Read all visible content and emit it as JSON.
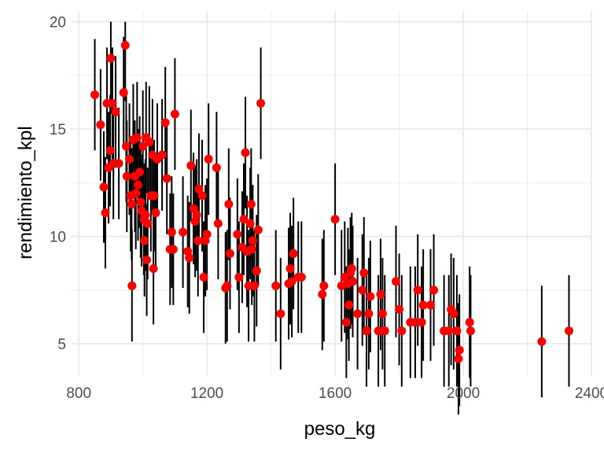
{
  "chart_data": {
    "type": "scatter",
    "xlabel": "peso_kg",
    "ylabel": "rendimiento_kpl",
    "xlim": [
      775,
      2400
    ],
    "ylim": [
      3.5,
      20.5
    ],
    "x_ticks": [
      800,
      1200,
      1600,
      2000,
      2400
    ],
    "x_tick_labels": [
      "800",
      "1200",
      "1600",
      "2000",
      "2400"
    ],
    "y_ticks": [
      5,
      10,
      15,
      20
    ],
    "y_tick_labels": [
      "5",
      "10",
      "15",
      "20"
    ],
    "grid": true,
    "point_color": "#ff0000",
    "errorbar_color": "#000000",
    "errorbar_halfwidth": 2.6,
    "points": [
      {
        "x": 850,
        "y": 16.6
      },
      {
        "x": 868,
        "y": 15.2
      },
      {
        "x": 878,
        "y": 12.3
      },
      {
        "x": 883,
        "y": 11.1
      },
      {
        "x": 888,
        "y": 16.2
      },
      {
        "x": 893,
        "y": 13.2
      },
      {
        "x": 898,
        "y": 14.0
      },
      {
        "x": 900,
        "y": 18.3
      },
      {
        "x": 905,
        "y": 16.2
      },
      {
        "x": 908,
        "y": 13.4
      },
      {
        "x": 915,
        "y": 15.8
      },
      {
        "x": 925,
        "y": 13.4
      },
      {
        "x": 940,
        "y": 16.7
      },
      {
        "x": 945,
        "y": 18.9
      },
      {
        "x": 948,
        "y": 14.2
      },
      {
        "x": 950,
        "y": 12.8
      },
      {
        "x": 958,
        "y": 13.6
      },
      {
        "x": 962,
        "y": 11.9
      },
      {
        "x": 965,
        "y": 11.5
      },
      {
        "x": 966,
        "y": 7.7
      },
      {
        "x": 970,
        "y": 14.5
      },
      {
        "x": 975,
        "y": 12.8
      },
      {
        "x": 978,
        "y": 12.0
      },
      {
        "x": 982,
        "y": 14.6
      },
      {
        "x": 985,
        "y": 12.4
      },
      {
        "x": 990,
        "y": 13.0
      },
      {
        "x": 993,
        "y": 11.6
      },
      {
        "x": 996,
        "y": 11.2
      },
      {
        "x": 1000,
        "y": 14.2
      },
      {
        "x": 1003,
        "y": 10.8
      },
      {
        "x": 1005,
        "y": 9.8
      },
      {
        "x": 1008,
        "y": 11.0
      },
      {
        "x": 1010,
        "y": 14.6
      },
      {
        "x": 1012,
        "y": 8.9
      },
      {
        "x": 1015,
        "y": 10.6
      },
      {
        "x": 1020,
        "y": 14.4
      },
      {
        "x": 1025,
        "y": 11.9
      },
      {
        "x": 1030,
        "y": 13.8
      },
      {
        "x": 1033,
        "y": 8.5
      },
      {
        "x": 1035,
        "y": 11.9
      },
      {
        "x": 1040,
        "y": 11.1
      },
      {
        "x": 1045,
        "y": 13.6
      },
      {
        "x": 1060,
        "y": 13.8
      },
      {
        "x": 1070,
        "y": 15.3
      },
      {
        "x": 1075,
        "y": 12.7
      },
      {
        "x": 1085,
        "y": 9.4
      },
      {
        "x": 1090,
        "y": 10.2
      },
      {
        "x": 1095,
        "y": 9.4
      },
      {
        "x": 1100,
        "y": 15.7
      },
      {
        "x": 1125,
        "y": 10.2
      },
      {
        "x": 1140,
        "y": 9.3
      },
      {
        "x": 1145,
        "y": 9.0
      },
      {
        "x": 1150,
        "y": 13.3
      },
      {
        "x": 1158,
        "y": 11.3
      },
      {
        "x": 1163,
        "y": 10.7
      },
      {
        "x": 1168,
        "y": 11.0
      },
      {
        "x": 1172,
        "y": 9.8
      },
      {
        "x": 1175,
        "y": 12.2
      },
      {
        "x": 1185,
        "y": 11.9
      },
      {
        "x": 1190,
        "y": 8.1
      },
      {
        "x": 1195,
        "y": 9.8
      },
      {
        "x": 1200,
        "y": 10.1
      },
      {
        "x": 1205,
        "y": 13.6
      },
      {
        "x": 1230,
        "y": 13.2
      },
      {
        "x": 1235,
        "y": 10.6
      },
      {
        "x": 1258,
        "y": 7.6
      },
      {
        "x": 1263,
        "y": 7.7
      },
      {
        "x": 1268,
        "y": 11.5
      },
      {
        "x": 1272,
        "y": 9.2
      },
      {
        "x": 1295,
        "y": 10.1
      },
      {
        "x": 1300,
        "y": 8.1
      },
      {
        "x": 1310,
        "y": 9.5
      },
      {
        "x": 1315,
        "y": 10.8
      },
      {
        "x": 1320,
        "y": 13.9
      },
      {
        "x": 1325,
        "y": 9.3
      },
      {
        "x": 1330,
        "y": 7.7
      },
      {
        "x": 1335,
        "y": 10.6
      },
      {
        "x": 1338,
        "y": 11.5
      },
      {
        "x": 1340,
        "y": 9.4
      },
      {
        "x": 1343,
        "y": 9.8
      },
      {
        "x": 1348,
        "y": 7.7
      },
      {
        "x": 1355,
        "y": 8.4
      },
      {
        "x": 1360,
        "y": 10.3
      },
      {
        "x": 1368,
        "y": 16.2
      },
      {
        "x": 1415,
        "y": 7.7
      },
      {
        "x": 1430,
        "y": 6.4
      },
      {
        "x": 1455,
        "y": 7.8
      },
      {
        "x": 1460,
        "y": 8.5
      },
      {
        "x": 1465,
        "y": 7.9
      },
      {
        "x": 1470,
        "y": 9.2
      },
      {
        "x": 1485,
        "y": 8.1
      },
      {
        "x": 1495,
        "y": 8.1
      },
      {
        "x": 1560,
        "y": 7.3
      },
      {
        "x": 1565,
        "y": 7.7
      },
      {
        "x": 1600,
        "y": 10.8
      },
      {
        "x": 1620,
        "y": 7.7
      },
      {
        "x": 1630,
        "y": 8.1
      },
      {
        "x": 1635,
        "y": 6.0
      },
      {
        "x": 1640,
        "y": 7.8
      },
      {
        "x": 1643,
        "y": 6.8
      },
      {
        "x": 1648,
        "y": 8.3
      },
      {
        "x": 1652,
        "y": 8.5
      },
      {
        "x": 1655,
        "y": 7.9
      },
      {
        "x": 1670,
        "y": 6.4
      },
      {
        "x": 1685,
        "y": 7.5
      },
      {
        "x": 1690,
        "y": 8.3
      },
      {
        "x": 1698,
        "y": 5.6
      },
      {
        "x": 1705,
        "y": 6.4
      },
      {
        "x": 1710,
        "y": 7.2
      },
      {
        "x": 1735,
        "y": 5.6
      },
      {
        "x": 1742,
        "y": 7.3
      },
      {
        "x": 1748,
        "y": 6.4
      },
      {
        "x": 1755,
        "y": 5.6
      },
      {
        "x": 1790,
        "y": 7.9
      },
      {
        "x": 1800,
        "y": 6.6
      },
      {
        "x": 1808,
        "y": 5.6
      },
      {
        "x": 1835,
        "y": 6.0
      },
      {
        "x": 1850,
        "y": 6.0
      },
      {
        "x": 1858,
        "y": 7.5
      },
      {
        "x": 1870,
        "y": 6.0
      },
      {
        "x": 1875,
        "y": 6.8
      },
      {
        "x": 1898,
        "y": 6.8
      },
      {
        "x": 1908,
        "y": 7.5
      },
      {
        "x": 1940,
        "y": 5.6
      },
      {
        "x": 1955,
        "y": 5.6
      },
      {
        "x": 1962,
        "y": 6.6
      },
      {
        "x": 1970,
        "y": 6.4
      },
      {
        "x": 1980,
        "y": 5.6
      },
      {
        "x": 1985,
        "y": 4.3
      },
      {
        "x": 1988,
        "y": 4.7
      },
      {
        "x": 2020,
        "y": 6.0
      },
      {
        "x": 2023,
        "y": 5.6
      },
      {
        "x": 2245,
        "y": 5.1
      },
      {
        "x": 2330,
        "y": 5.6
      }
    ]
  }
}
